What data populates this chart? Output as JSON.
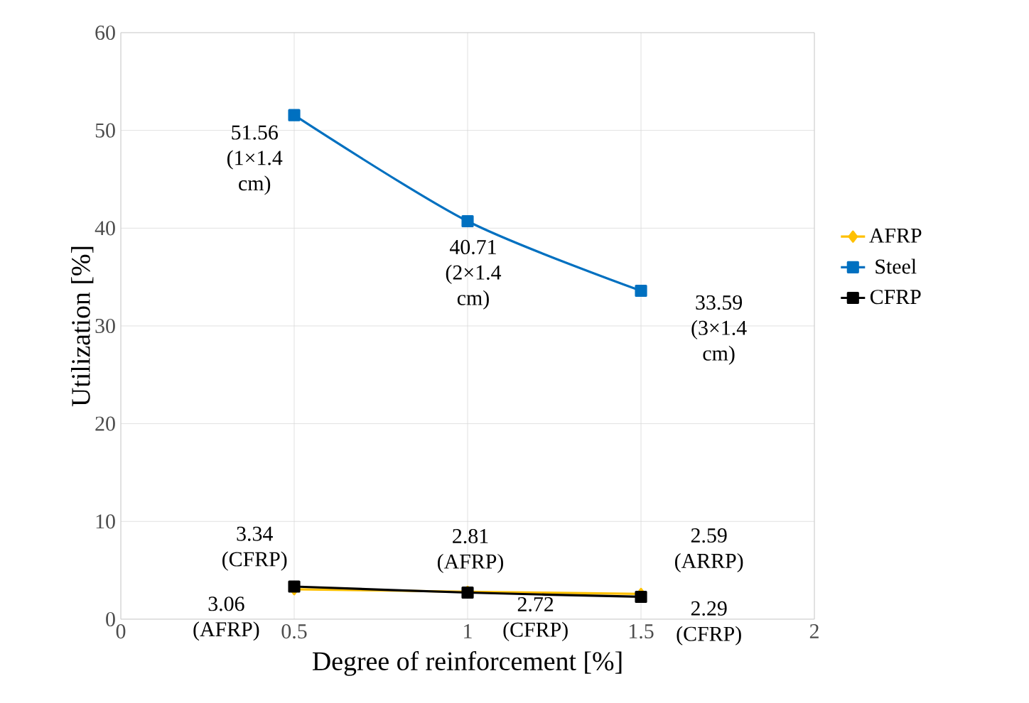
{
  "chart_data": {
    "type": "line",
    "xlabel": "Degree of reinforcement [%]",
    "ylabel": "Utilization [%]",
    "x": [
      0.5,
      1,
      1.5
    ],
    "series": [
      {
        "name": "AFRP",
        "color": "#ffc000",
        "marker": "diamond",
        "values": [
          3.06,
          2.81,
          2.59
        ]
      },
      {
        "name": "Steel",
        "color": "#0070c0",
        "marker": "square",
        "values": [
          51.56,
          40.71,
          33.59
        ]
      },
      {
        "name": "CFRP",
        "color": "#000000",
        "marker": "square",
        "values": [
          3.34,
          2.72,
          2.29
        ]
      }
    ],
    "xlim": [
      0,
      2
    ],
    "xticks": [
      0,
      0.5,
      1,
      1.5,
      2
    ],
    "ylim": [
      0,
      60
    ],
    "yticks": [
      0,
      10,
      20,
      30,
      40,
      50,
      60
    ],
    "grid": true,
    "legend": "right",
    "annotations": [
      {
        "text": "51.56 (1×1.4 cm)",
        "x": 0.5,
        "y": 51.56
      },
      {
        "text": "40.71 (2×1.4 cm)",
        "x": 1,
        "y": 40.71
      },
      {
        "text": "33.59 (3×1.4 cm)",
        "x": 1.5,
        "y": 33.59
      },
      {
        "text": "3.34 (CFRP)",
        "x": 0.5,
        "y": 3.34
      },
      {
        "text": "3.06 (AFRP)",
        "x": 0.5,
        "y": 3.06
      },
      {
        "text": "2.81 (AFRP)",
        "x": 1,
        "y": 2.81
      },
      {
        "text": "2.72 (CFRP)",
        "x": 1,
        "y": 2.72
      },
      {
        "text": "2.59 (ARRP)",
        "x": 1.5,
        "y": 2.59
      },
      {
        "text": "2.29 (CFRP)",
        "x": 1.5,
        "y": 2.29
      }
    ]
  }
}
